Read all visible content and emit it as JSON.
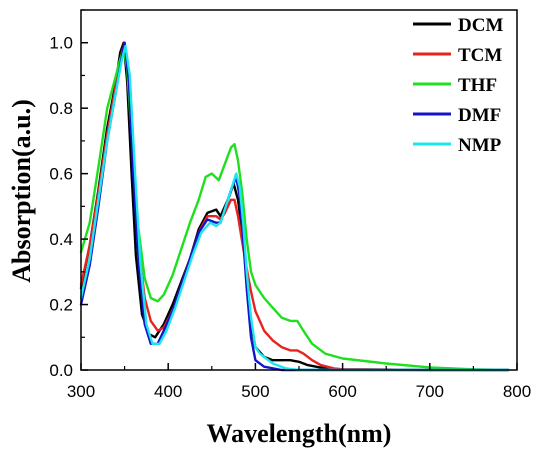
{
  "chart_data": {
    "type": "line",
    "xlabel": "Wavelength(nm)",
    "ylabel": "Absorption(a.u.)",
    "xlim": [
      300,
      800
    ],
    "ylim": [
      0.0,
      1.1
    ],
    "x_ticks": [
      "300",
      "400",
      "500",
      "600",
      "700",
      "800"
    ],
    "y_ticks": [
      "0.0",
      "0.2",
      "0.4",
      "0.6",
      "0.8",
      "1.0"
    ],
    "grid": false,
    "legend_position": "top-right",
    "series": [
      {
        "name": "DCM",
        "color": "#000000",
        "points": [
          [
            300,
            0.25
          ],
          [
            310,
            0.38
          ],
          [
            320,
            0.55
          ],
          [
            330,
            0.74
          ],
          [
            340,
            0.88
          ],
          [
            345,
            0.97
          ],
          [
            349,
            1.0
          ],
          [
            353,
            0.88
          ],
          [
            358,
            0.6
          ],
          [
            363,
            0.35
          ],
          [
            370,
            0.17
          ],
          [
            378,
            0.11
          ],
          [
            385,
            0.1
          ],
          [
            395,
            0.14
          ],
          [
            405,
            0.2
          ],
          [
            415,
            0.27
          ],
          [
            425,
            0.34
          ],
          [
            435,
            0.43
          ],
          [
            445,
            0.48
          ],
          [
            455,
            0.49
          ],
          [
            460,
            0.47
          ],
          [
            465,
            0.5
          ],
          [
            470,
            0.53
          ],
          [
            475,
            0.57
          ],
          [
            480,
            0.52
          ],
          [
            485,
            0.42
          ],
          [
            490,
            0.28
          ],
          [
            495,
            0.14
          ],
          [
            500,
            0.07
          ],
          [
            510,
            0.04
          ],
          [
            520,
            0.03
          ],
          [
            530,
            0.03
          ],
          [
            540,
            0.03
          ],
          [
            550,
            0.025
          ],
          [
            560,
            0.015
          ],
          [
            580,
            0.005
          ],
          [
            600,
            0.002
          ],
          [
            700,
            0.0
          ],
          [
            790,
            0.0
          ]
        ]
      },
      {
        "name": "TCM",
        "color": "#e8231e",
        "points": [
          [
            300,
            0.26
          ],
          [
            310,
            0.38
          ],
          [
            320,
            0.54
          ],
          [
            330,
            0.72
          ],
          [
            340,
            0.87
          ],
          [
            347,
            0.97
          ],
          [
            350,
            1.0
          ],
          [
            355,
            0.9
          ],
          [
            360,
            0.62
          ],
          [
            366,
            0.38
          ],
          [
            373,
            0.22
          ],
          [
            380,
            0.15
          ],
          [
            388,
            0.12
          ],
          [
            395,
            0.13
          ],
          [
            405,
            0.18
          ],
          [
            415,
            0.26
          ],
          [
            425,
            0.34
          ],
          [
            435,
            0.42
          ],
          [
            445,
            0.47
          ],
          [
            455,
            0.47
          ],
          [
            460,
            0.46
          ],
          [
            465,
            0.48
          ],
          [
            472,
            0.52
          ],
          [
            476,
            0.52
          ],
          [
            480,
            0.47
          ],
          [
            485,
            0.39
          ],
          [
            490,
            0.31
          ],
          [
            495,
            0.24
          ],
          [
            500,
            0.18
          ],
          [
            505,
            0.15
          ],
          [
            510,
            0.12
          ],
          [
            520,
            0.09
          ],
          [
            530,
            0.07
          ],
          [
            540,
            0.06
          ],
          [
            548,
            0.06
          ],
          [
            555,
            0.05
          ],
          [
            565,
            0.03
          ],
          [
            575,
            0.015
          ],
          [
            590,
            0.005
          ],
          [
            600,
            0.002
          ],
          [
            700,
            0.0
          ],
          [
            790,
            0.0
          ]
        ]
      },
      {
        "name": "THF",
        "color": "#1ee01e",
        "points": [
          [
            300,
            0.36
          ],
          [
            310,
            0.45
          ],
          [
            320,
            0.62
          ],
          [
            330,
            0.8
          ],
          [
            340,
            0.9
          ],
          [
            345,
            0.95
          ],
          [
            349,
            0.98
          ],
          [
            353,
            0.92
          ],
          [
            358,
            0.72
          ],
          [
            365,
            0.45
          ],
          [
            373,
            0.28
          ],
          [
            380,
            0.22
          ],
          [
            388,
            0.21
          ],
          [
            395,
            0.23
          ],
          [
            405,
            0.29
          ],
          [
            415,
            0.37
          ],
          [
            425,
            0.45
          ],
          [
            435,
            0.52
          ],
          [
            443,
            0.59
          ],
          [
            450,
            0.6
          ],
          [
            458,
            0.58
          ],
          [
            465,
            0.63
          ],
          [
            472,
            0.68
          ],
          [
            476,
            0.69
          ],
          [
            480,
            0.64
          ],
          [
            485,
            0.54
          ],
          [
            490,
            0.4
          ],
          [
            495,
            0.3
          ],
          [
            500,
            0.26
          ],
          [
            510,
            0.22
          ],
          [
            520,
            0.19
          ],
          [
            530,
            0.16
          ],
          [
            540,
            0.15
          ],
          [
            548,
            0.15
          ],
          [
            555,
            0.12
          ],
          [
            565,
            0.08
          ],
          [
            580,
            0.05
          ],
          [
            600,
            0.035
          ],
          [
            650,
            0.02
          ],
          [
            700,
            0.008
          ],
          [
            750,
            0.002
          ],
          [
            790,
            0.0
          ]
        ]
      },
      {
        "name": "DMF",
        "color": "#1414c8",
        "points": [
          [
            300,
            0.2
          ],
          [
            310,
            0.32
          ],
          [
            320,
            0.5
          ],
          [
            330,
            0.7
          ],
          [
            340,
            0.85
          ],
          [
            347,
            0.96
          ],
          [
            350,
            1.0
          ],
          [
            355,
            0.88
          ],
          [
            360,
            0.6
          ],
          [
            366,
            0.33
          ],
          [
            373,
            0.14
          ],
          [
            380,
            0.08
          ],
          [
            388,
            0.08
          ],
          [
            395,
            0.12
          ],
          [
            405,
            0.18
          ],
          [
            415,
            0.26
          ],
          [
            425,
            0.34
          ],
          [
            435,
            0.42
          ],
          [
            445,
            0.46
          ],
          [
            455,
            0.45
          ],
          [
            460,
            0.45
          ],
          [
            466,
            0.5
          ],
          [
            472,
            0.55
          ],
          [
            478,
            0.59
          ],
          [
            482,
            0.53
          ],
          [
            486,
            0.4
          ],
          [
            490,
            0.25
          ],
          [
            495,
            0.1
          ],
          [
            500,
            0.03
          ],
          [
            510,
            0.01
          ],
          [
            530,
            0.0
          ],
          [
            790,
            0.0
          ]
        ]
      },
      {
        "name": "NMP",
        "color": "#1ee6f0",
        "points": [
          [
            300,
            0.22
          ],
          [
            310,
            0.34
          ],
          [
            320,
            0.52
          ],
          [
            330,
            0.7
          ],
          [
            340,
            0.85
          ],
          [
            347,
            0.95
          ],
          [
            351,
            0.99
          ],
          [
            356,
            0.9
          ],
          [
            362,
            0.6
          ],
          [
            368,
            0.33
          ],
          [
            375,
            0.14
          ],
          [
            382,
            0.08
          ],
          [
            390,
            0.08
          ],
          [
            398,
            0.12
          ],
          [
            408,
            0.19
          ],
          [
            418,
            0.27
          ],
          [
            428,
            0.35
          ],
          [
            438,
            0.42
          ],
          [
            448,
            0.45
          ],
          [
            455,
            0.44
          ],
          [
            460,
            0.45
          ],
          [
            466,
            0.5
          ],
          [
            472,
            0.55
          ],
          [
            478,
            0.6
          ],
          [
            482,
            0.56
          ],
          [
            486,
            0.45
          ],
          [
            490,
            0.3
          ],
          [
            495,
            0.16
          ],
          [
            500,
            0.07
          ],
          [
            505,
            0.05
          ],
          [
            510,
            0.04
          ],
          [
            520,
            0.02
          ],
          [
            535,
            0.005
          ],
          [
            550,
            0.0
          ],
          [
            790,
            0.0
          ]
        ]
      }
    ]
  }
}
